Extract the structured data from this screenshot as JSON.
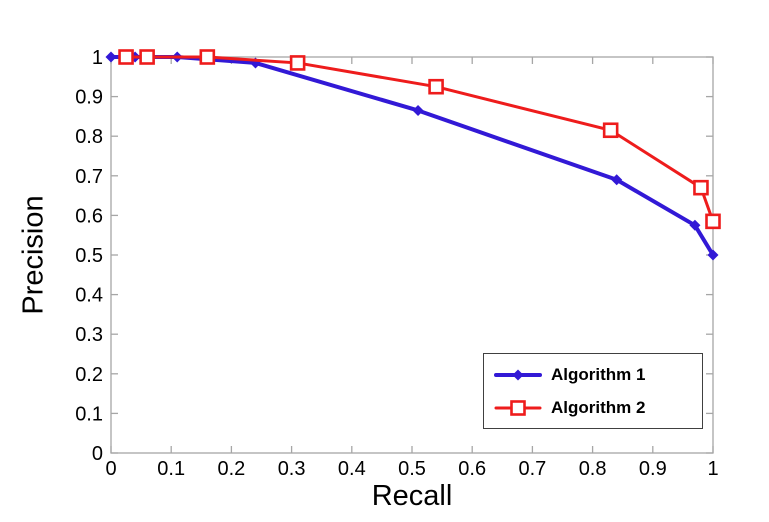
{
  "figure": {
    "background": "#ffffff",
    "axis_color": "#a6a6a6",
    "text_color": "#000000",
    "legend_border_color": "#404040"
  },
  "chart_data": {
    "type": "line",
    "title": "",
    "xlabel": "Recall",
    "ylabel": "Precision",
    "xlim": [
      0,
      1
    ],
    "ylim": [
      0,
      1
    ],
    "grid": false,
    "legend_position": "lower-right",
    "x_ticks": {
      "values": [
        0,
        0.1,
        0.2,
        0.3,
        0.4,
        0.5,
        0.6,
        0.7,
        0.8,
        0.9,
        1
      ],
      "labels": [
        "0",
        "0.1",
        "0.2",
        "0.3",
        "0.4",
        "0.5",
        "0.6",
        "0.7",
        "0.8",
        "0.9",
        "1"
      ]
    },
    "y_ticks": {
      "values": [
        0,
        0.1,
        0.2,
        0.3,
        0.4,
        0.5,
        0.6,
        0.7,
        0.8,
        0.9,
        1
      ],
      "labels": [
        "0",
        "0.1",
        "0.2",
        "0.3",
        "0.4",
        "0.5",
        "0.6",
        "0.7",
        "0.8",
        "0.9",
        "1"
      ]
    },
    "series": [
      {
        "name": "Algorithm 1",
        "color": "#3219d6",
        "marker": "filled-diamond",
        "line_width": 4,
        "points": [
          [
            0,
            1.0
          ],
          [
            0.04,
            1.0
          ],
          [
            0.11,
            1.0
          ],
          [
            0.24,
            0.985
          ],
          [
            0.51,
            0.865
          ],
          [
            0.84,
            0.69
          ],
          [
            0.97,
            0.575
          ],
          [
            1.0,
            0.5
          ]
        ]
      },
      {
        "name": "Algorithm 2",
        "color": "#ee1c1c",
        "marker": "open-square",
        "line_width": 3,
        "points": [
          [
            0.025,
            1.0
          ],
          [
            0.06,
            1.0
          ],
          [
            0.16,
            1.0
          ],
          [
            0.31,
            0.985
          ],
          [
            0.54,
            0.925
          ],
          [
            0.83,
            0.815
          ],
          [
            0.98,
            0.67
          ],
          [
            1.0,
            0.585
          ]
        ]
      }
    ]
  }
}
